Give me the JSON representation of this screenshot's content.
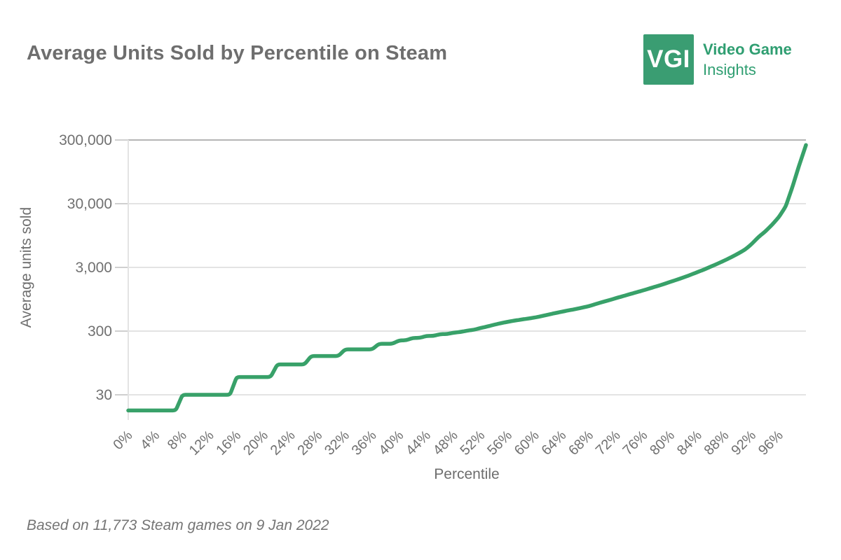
{
  "header": {
    "title": "Average Units Sold by Percentile on Steam",
    "logo": {
      "abbr": "VGI",
      "line1": "Video Game",
      "line2": "Insights"
    }
  },
  "footer": {
    "note": "Based on 11,773 Steam games on 9 Jan 2022"
  },
  "colors": {
    "brand_green": "#3a9d72",
    "logo_text_green": "#2f9e71",
    "line_green": "#38a169",
    "grid": "#e3e3e3",
    "grid_top": "#b5b5b5",
    "tick": "#cfcfcf",
    "title_text": "#6e6e6e",
    "axis_text": "#707070",
    "axis_title_text": "#6e6e6e",
    "footer_text": "#757575"
  },
  "chart_data": {
    "type": "line",
    "title": "Average Units Sold by Percentile on Steam",
    "xlabel": "Percentile",
    "ylabel": "Average units sold",
    "y_scale": "log",
    "grid": "horizontal-only",
    "legend": "none",
    "x_range": [
      0,
      100
    ],
    "y_ticks": [
      {
        "label": "300,000",
        "value": 300000
      },
      {
        "label": "30,000",
        "value": 30000
      },
      {
        "label": "3,000",
        "value": 3000
      },
      {
        "label": "300",
        "value": 300
      },
      {
        "label": "30",
        "value": 30
      }
    ],
    "x_ticks": [
      {
        "label": "0%",
        "value": 0
      },
      {
        "label": "4%",
        "value": 4
      },
      {
        "label": "8%",
        "value": 8
      },
      {
        "label": "12%",
        "value": 12
      },
      {
        "label": "16%",
        "value": 16
      },
      {
        "label": "20%",
        "value": 20
      },
      {
        "label": "24%",
        "value": 24
      },
      {
        "label": "28%",
        "value": 28
      },
      {
        "label": "32%",
        "value": 32
      },
      {
        "label": "36%",
        "value": 36
      },
      {
        "label": "40%",
        "value": 40
      },
      {
        "label": "44%",
        "value": 44
      },
      {
        "label": "48%",
        "value": 48
      },
      {
        "label": "52%",
        "value": 52
      },
      {
        "label": "56%",
        "value": 56
      },
      {
        "label": "60%",
        "value": 60
      },
      {
        "label": "64%",
        "value": 64
      },
      {
        "label": "68%",
        "value": 68
      },
      {
        "label": "72%",
        "value": 72
      },
      {
        "label": "76%",
        "value": 76
      },
      {
        "label": "80%",
        "value": 80
      },
      {
        "label": "84%",
        "value": 84
      },
      {
        "label": "88%",
        "value": 88
      },
      {
        "label": "92%",
        "value": 92
      },
      {
        "label": "96%",
        "value": 96
      }
    ],
    "series": [
      {
        "name": "Average units sold",
        "color": "#38a169",
        "percentiles": [
          0,
          1,
          2,
          3,
          4,
          5,
          6,
          7,
          8,
          9,
          10,
          11,
          12,
          13,
          14,
          15,
          16,
          17,
          18,
          19,
          20,
          21,
          22,
          23,
          24,
          25,
          26,
          27,
          28,
          29,
          30,
          31,
          32,
          33,
          34,
          35,
          36,
          37,
          38,
          39,
          40,
          41,
          42,
          43,
          44,
          45,
          46,
          47,
          48,
          49,
          50,
          51,
          52,
          53,
          54,
          55,
          56,
          57,
          58,
          59,
          60,
          61,
          62,
          63,
          64,
          65,
          66,
          67,
          68,
          69,
          70,
          71,
          72,
          73,
          74,
          75,
          76,
          77,
          78,
          79,
          80,
          81,
          82,
          83,
          84,
          85,
          86,
          87,
          88,
          89,
          90,
          91,
          92,
          93,
          94,
          95,
          96,
          97,
          98,
          99,
          100
        ],
        "values": [
          17,
          17,
          17,
          17,
          17,
          17,
          17,
          17,
          30,
          30,
          30,
          30,
          30,
          30,
          30,
          30,
          57,
          57,
          57,
          57,
          57,
          57,
          90,
          90,
          90,
          90,
          90,
          122,
          122,
          122,
          122,
          122,
          155,
          155,
          155,
          155,
          155,
          190,
          190,
          190,
          215,
          215,
          235,
          235,
          252,
          252,
          268,
          270,
          283,
          290,
          305,
          315,
          335,
          355,
          378,
          400,
          420,
          438,
          455,
          472,
          490,
          515,
          545,
          575,
          605,
          635,
          665,
          700,
          740,
          800,
          860,
          920,
          990,
          1060,
          1140,
          1220,
          1310,
          1410,
          1520,
          1640,
          1780,
          1930,
          2100,
          2300,
          2530,
          2790,
          3100,
          3450,
          3860,
          4350,
          4950,
          5700,
          7000,
          9000,
          11000,
          14000,
          18500,
          27000,
          55000,
          120000,
          250000
        ]
      }
    ]
  }
}
